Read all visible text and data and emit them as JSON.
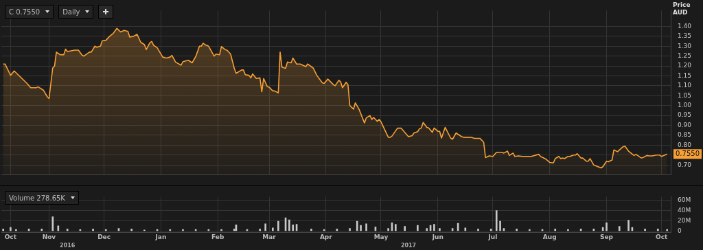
{
  "chart_data": [
    {
      "type": "area",
      "ylabel": "Price AUD",
      "color": "#f7a035",
      "grid": true,
      "tick_labels": "y",
      "annotations": [
        "C 0.7550",
        "Daily"
      ],
      "value_labels": [
        null,
        null,
        null,
        null,
        null,
        null,
        null,
        null,
        null,
        null,
        null,
        null,
        null,
        null,
        null,
        null,
        null,
        null,
        null,
        null,
        null,
        null,
        null,
        null,
        null,
        null,
        null,
        null,
        null,
        null,
        null,
        null,
        null,
        null,
        null,
        null,
        null,
        null,
        null,
        null,
        null,
        null,
        null,
        null,
        null,
        null,
        null,
        null,
        null,
        null,
        null,
        null,
        null,
        null,
        null,
        null,
        null,
        null,
        null,
        null,
        null,
        null,
        null,
        null,
        null,
        null,
        null,
        null,
        null,
        null,
        null,
        null,
        null,
        null,
        null,
        null,
        null,
        null,
        null,
        null,
        null,
        null,
        null,
        null,
        null,
        null,
        null,
        null,
        null,
        null,
        null,
        null,
        null,
        null,
        null,
        null,
        null,
        null,
        null,
        null,
        null,
        null,
        null,
        null,
        null,
        null,
        null,
        null,
        null,
        null,
        null,
        null,
        null,
        null,
        null,
        null,
        null,
        null,
        null,
        null,
        null,
        null,
        null,
        null,
        null,
        null,
        null,
        null,
        null,
        null,
        null,
        null,
        null,
        null,
        null,
        null,
        null,
        null,
        null,
        null,
        null,
        null,
        null,
        null,
        null,
        null,
        null,
        null,
        null,
        null,
        null,
        null,
        null,
        null,
        null,
        null,
        null,
        null,
        null,
        null,
        null,
        null,
        null,
        null,
        null,
        null,
        null,
        null,
        null,
        null,
        null,
        null,
        null,
        null,
        null,
        null,
        null,
        null,
        null,
        null,
        null,
        null,
        null,
        null,
        null,
        null,
        null,
        null,
        null,
        null,
        null,
        null,
        null,
        null,
        null,
        null,
        null,
        null,
        null,
        null,
        null,
        null,
        null,
        null,
        null,
        "0.7550"
      ],
      "x": [
        "2016-10-21",
        "2016-10-22",
        "2016-10-25",
        "2016-10-27",
        "2016-11-03",
        "2016-11-05",
        "2016-11-08",
        "2016-11-09",
        "2016-11-12",
        "2016-11-14",
        "2016-11-15",
        "2016-11-17",
        "2016-11-18",
        "2016-11-19",
        "2016-11-21",
        "2016-11-23",
        "2016-11-24",
        "2016-11-25",
        "2016-11-29",
        "2016-12-01",
        "2016-12-03",
        "2016-12-04",
        "2016-12-07",
        "2016-12-08",
        "2016-12-10",
        "2016-12-11",
        "2016-12-13",
        "2016-12-14",
        "2016-12-16",
        "2016-12-18",
        "2016-12-20",
        "2016-12-22",
        "2016-12-24",
        "2016-12-26",
        "2016-12-28",
        "2016-12-29",
        "2016-12-31",
        "2017-01-02",
        "2017-01-04",
        "2017-01-06",
        "2017-01-07",
        "2017-01-09",
        "2017-01-10",
        "2017-01-11",
        "2017-01-13",
        "2017-01-16",
        "2017-01-18",
        "2017-01-20",
        "2017-01-21",
        "2017-01-23",
        "2017-01-26",
        "2017-01-27",
        "2017-01-30",
        "2017-02-01",
        "2017-02-03",
        "2017-02-05",
        "2017-02-06",
        "2017-02-07",
        "2017-02-08",
        "2017-02-10",
        "2017-02-13",
        "2017-02-14",
        "2017-02-16",
        "2017-02-17",
        "2017-02-19",
        "2017-02-20",
        "2017-02-22",
        "2017-02-24",
        "2017-02-25",
        "2017-02-28",
        "2017-03-01",
        "2017-03-02",
        "2017-03-04",
        "2017-03-05",
        "2017-03-06",
        "2017-03-08",
        "2017-03-10",
        "2017-03-11",
        "2017-03-12",
        "2017-03-14",
        "2017-03-15",
        "2017-03-17",
        "2017-03-18",
        "2017-03-20",
        "2017-03-21",
        "2017-03-22",
        "2017-03-24",
        "2017-03-25",
        "2017-03-27",
        "2017-03-28",
        "2017-03-30",
        "2017-04-01",
        "2017-04-04",
        "2017-04-05",
        "2017-04-08",
        "2017-04-10",
        "2017-04-11",
        "2017-04-13",
        "2017-04-14",
        "2017-04-16",
        "2017-04-19",
        "2017-04-20",
        "2017-04-22",
        "2017-04-23",
        "2017-04-24",
        "2017-04-26",
        "2017-04-27",
        "2017-04-28",
        "2017-04-30",
        "2017-05-01",
        "2017-05-03",
        "2017-05-06",
        "2017-05-07",
        "2017-05-09",
        "2017-05-10",
        "2017-05-11",
        "2017-05-13",
        "2017-05-14",
        "2017-05-15",
        "2017-05-19",
        "2017-05-20",
        "2017-05-21",
        "2017-05-24",
        "2017-05-26",
        "2017-05-27",
        "2017-05-30",
        "2017-06-01",
        "2017-06-02",
        "2017-06-04",
        "2017-06-05",
        "2017-06-06",
        "2017-06-07",
        "2017-06-09",
        "2017-06-10",
        "2017-06-12",
        "2017-06-13",
        "2017-06-15",
        "2017-06-16",
        "2017-06-17",
        "2017-06-19",
        "2017-06-22",
        "2017-06-23",
        "2017-06-25",
        "2017-06-26",
        "2017-06-28",
        "2017-06-29",
        "2017-07-03",
        "2017-07-05",
        "2017-07-08",
        "2017-07-10",
        "2017-07-11",
        "2017-07-13",
        "2017-07-15",
        "2017-07-17",
        "2017-07-20",
        "2017-07-21",
        "2017-07-23",
        "2017-07-24",
        "2017-07-26",
        "2017-07-27",
        "2017-07-29",
        "2017-07-31",
        "2017-08-05",
        "2017-08-09",
        "2017-08-10",
        "2017-08-13",
        "2017-08-15",
        "2017-08-17",
        "2017-08-18",
        "2017-08-20",
        "2017-08-21",
        "2017-08-22",
        "2017-08-23",
        "2017-08-25",
        "2017-08-26",
        "2017-08-28",
        "2017-08-29",
        "2017-08-30",
        "2017-09-01",
        "2017-09-02",
        "2017-09-04",
        "2017-09-05",
        "2017-09-06",
        "2017-09-08",
        "2017-09-12",
        "2017-09-13",
        "2017-09-15",
        "2017-09-16",
        "2017-09-18",
        "2017-09-19",
        "2017-09-21",
        "2017-09-22",
        "2017-09-24",
        "2017-09-25",
        "2017-09-27",
        "2017-09-30",
        "2017-10-01",
        "2017-10-04",
        "2017-10-05",
        "2017-10-07",
        "2017-10-08",
        "2017-10-10",
        "2017-10-12",
        "2017-10-14",
        "2017-10-15",
        "2017-10-18"
      ],
      "values": [
        1.21,
        1.21,
        1.153,
        1.175,
        1.112,
        1.09,
        1.09,
        1.095,
        1.077,
        1.045,
        1.036,
        1.19,
        1.2,
        1.27,
        1.257,
        1.257,
        1.285,
        1.273,
        1.28,
        1.28,
        1.255,
        1.25,
        1.27,
        1.27,
        1.3,
        1.295,
        1.3,
        1.327,
        1.33,
        1.35,
        1.365,
        1.39,
        1.372,
        1.38,
        1.375,
        1.346,
        1.35,
        1.36,
        1.32,
        1.308,
        1.283,
        1.318,
        1.324,
        1.305,
        1.292,
        1.245,
        1.24,
        1.245,
        1.254,
        1.22,
        1.204,
        1.222,
        1.229,
        1.216,
        1.248,
        1.3,
        1.3,
        1.315,
        1.308,
        1.3,
        1.25,
        1.26,
        1.257,
        1.298,
        1.283,
        1.28,
        1.26,
        1.188,
        1.163,
        1.18,
        1.18,
        1.156,
        1.153,
        1.14,
        1.16,
        1.137,
        1.14,
        1.07,
        1.137,
        1.096,
        1.093,
        1.074,
        1.074,
        1.064,
        1.27,
        1.194,
        1.188,
        1.22,
        1.216,
        1.24,
        1.21,
        1.21,
        1.197,
        1.21,
        1.19,
        1.153,
        1.14,
        1.115,
        1.112,
        1.134,
        1.106,
        1.1,
        1.128,
        1.12,
        1.09,
        1.118,
        1.106,
        1.0,
        0.982,
        1.014,
        0.982,
        0.912,
        0.938,
        0.95,
        0.93,
        0.94,
        0.92,
        0.93,
        0.918,
        0.84,
        0.84,
        0.846,
        0.886,
        0.886,
        0.875,
        0.843,
        0.848,
        0.862,
        0.868,
        0.883,
        0.887,
        0.915,
        0.89,
        0.887,
        0.865,
        0.887,
        0.87,
        0.87,
        0.836,
        0.89,
        0.836,
        0.83,
        0.862,
        0.855,
        0.843,
        0.84,
        0.84,
        0.834,
        0.834,
        0.815,
        0.737,
        0.746,
        0.743,
        0.764,
        0.764,
        0.76,
        0.77,
        0.748,
        0.76,
        0.743,
        0.746,
        0.743,
        0.743,
        0.754,
        0.743,
        0.729,
        0.713,
        0.71,
        0.732,
        0.743,
        0.732,
        0.735,
        0.732,
        0.743,
        0.743,
        0.75,
        0.75,
        0.757,
        0.735,
        0.735,
        0.719,
        0.719,
        0.732,
        0.7,
        0.685,
        0.691,
        0.719,
        0.716,
        0.725,
        0.776,
        0.767,
        0.776,
        0.792,
        0.795,
        0.77,
        0.748,
        0.754,
        0.735,
        0.738,
        0.748,
        0.746,
        0.746,
        0.75,
        0.75,
        0.743,
        0.755
      ],
      "xlim": [
        "2016-10-20",
        "2017-10-20"
      ],
      "xticks": [
        {
          "value": "2016-10-25",
          "label": null
        },
        {
          "value": "2016-11-15",
          "label": null
        },
        {
          "value": "2016-12-15",
          "label": null
        },
        {
          "value": "2017-01-15",
          "label": null
        },
        {
          "value": "2017-02-15",
          "label": null
        },
        {
          "value": "2017-03-15",
          "label": null
        },
        {
          "value": "2017-04-15",
          "label": null
        },
        {
          "value": "2017-05-15",
          "label": null
        },
        {
          "value": "2017-06-15",
          "label": null
        },
        {
          "value": "2017-07-15",
          "label": null
        },
        {
          "value": "2017-08-15",
          "label": null
        },
        {
          "value": "2017-09-15",
          "label": null
        },
        {
          "value": "2017-10-15",
          "label": null
        }
      ],
      "ylim": [
        0.65,
        1.48
      ],
      "yticks": [
        {
          "value": 0.7,
          "label": "0.70"
        },
        {
          "value": 0.75,
          "label": null
        },
        {
          "value": 0.8,
          "label": "0.80"
        },
        {
          "value": 0.85,
          "label": "0.85"
        },
        {
          "value": 0.9,
          "label": "0.90"
        },
        {
          "value": 0.95,
          "label": "0.95"
        },
        {
          "value": 1.0,
          "label": "1.00"
        },
        {
          "value": 1.05,
          "label": "1.05"
        },
        {
          "value": 1.1,
          "label": "1.10"
        },
        {
          "value": 1.15,
          "label": "1.15"
        },
        {
          "value": 1.2,
          "label": "1.20"
        },
        {
          "value": 1.25,
          "label": "1.25"
        },
        {
          "value": 1.3,
          "label": "1.30"
        },
        {
          "value": 1.35,
          "label": "1.35"
        },
        {
          "value": 1.4,
          "label": "1.40"
        }
      ]
    },
    {
      "type": "bar",
      "color": "#c8c8c8",
      "grid": true,
      "annotations": [
        "Volume 278.65K"
      ],
      "x": [
        "2016-10-21",
        "2016-10-25",
        "2016-10-28",
        "2016-11-04",
        "2016-11-11",
        "2016-11-17",
        "2016-11-20",
        "2016-11-25",
        "2016-12-02",
        "2016-12-09",
        "2016-12-16",
        "2016-12-23",
        "2016-12-30",
        "2017-01-06",
        "2017-01-13",
        "2017-01-20",
        "2017-01-27",
        "2017-02-03",
        "2017-02-10",
        "2017-02-17",
        "2017-02-24",
        "2017-02-25",
        "2017-03-03",
        "2017-03-10",
        "2017-03-13",
        "2017-03-17",
        "2017-03-20",
        "2017-03-24",
        "2017-03-26",
        "2017-03-28",
        "2017-03-30",
        "2017-04-07",
        "2017-04-14",
        "2017-04-21",
        "2017-04-28",
        "2017-05-02",
        "2017-05-04",
        "2017-05-07",
        "2017-05-12",
        "2017-05-19",
        "2017-05-21",
        "2017-05-23",
        "2017-05-28",
        "2017-06-04",
        "2017-06-09",
        "2017-06-11",
        "2017-06-13",
        "2017-06-16",
        "2017-06-23",
        "2017-06-26",
        "2017-06-30",
        "2017-07-07",
        "2017-07-14",
        "2017-07-17",
        "2017-07-19",
        "2017-07-21",
        "2017-07-28",
        "2017-08-04",
        "2017-08-11",
        "2017-08-18",
        "2017-08-25",
        "2017-09-01",
        "2017-09-08",
        "2017-09-13",
        "2017-09-15",
        "2017-09-22",
        "2017-09-27",
        "2017-09-29",
        "2017-10-06",
        "2017-10-13",
        "2017-10-18"
      ],
      "values": [
        4,
        7,
        3,
        4,
        4,
        28,
        10,
        4,
        3,
        4,
        3,
        5,
        4,
        2,
        3,
        3,
        3,
        3,
        3,
        3,
        4,
        12,
        3,
        4,
        14,
        6,
        19,
        26,
        22,
        12,
        13,
        4,
        3,
        4,
        5,
        19,
        11,
        14,
        8,
        5,
        16,
        13,
        9,
        11,
        5,
        11,
        13,
        5,
        5,
        15,
        6,
        4,
        4,
        40,
        19,
        5,
        4,
        3,
        3,
        4,
        3,
        4,
        4,
        7,
        16,
        9,
        21,
        7,
        4,
        4,
        3
      ],
      "xlim": [
        "2016-10-20",
        "2017-10-20"
      ],
      "xticks": [
        {
          "value": "2016-10-25",
          "label": "Oct"
        },
        {
          "value": "2016-11-15",
          "label": "Nov"
        },
        {
          "value": "2016-12-15",
          "label": "Dec"
        },
        {
          "value": "2017-01-15",
          "label": "Jan"
        },
        {
          "value": "2017-02-15",
          "label": "Feb"
        },
        {
          "value": "2017-03-15",
          "label": "Mar"
        },
        {
          "value": "2017-04-15",
          "label": "Apr"
        },
        {
          "value": "2017-05-15",
          "label": "May"
        },
        {
          "value": "2017-06-15",
          "label": "Jun"
        },
        {
          "value": "2017-07-15",
          "label": "Jul"
        },
        {
          "value": "2017-08-15",
          "label": "Aug"
        },
        {
          "value": "2017-09-15",
          "label": "Sep"
        },
        {
          "value": "2017-10-15",
          "label": "Oct"
        }
      ],
      "x2lim": [
        "2016-10-20",
        "2017-10-20"
      ],
      "x2ticks": [
        {
          "value": "2016-11-25",
          "label": "2016"
        },
        {
          "value": "2017-05-30",
          "label": "2017"
        }
      ],
      "ylim": [
        -3,
        67
      ],
      "yticks": [
        {
          "value": 0,
          "label": "0"
        },
        {
          "value": 20,
          "label": "20M"
        },
        {
          "value": 40,
          "label": "40M"
        },
        {
          "value": 60,
          "label": "60M"
        }
      ]
    }
  ]
}
